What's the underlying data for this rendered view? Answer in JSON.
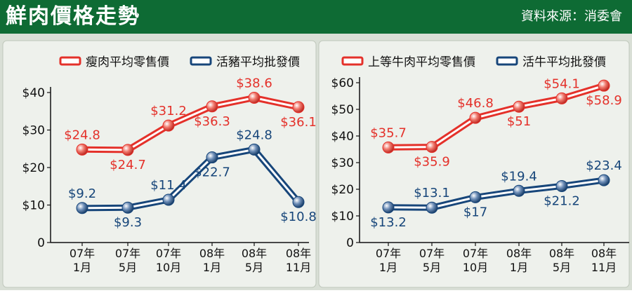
{
  "header": {
    "title": "鮮肉價格走勢",
    "source": "資料來源：消委會",
    "bg_color": "#0e6b34"
  },
  "colors": {
    "panel_bg": "#d9dfd6",
    "red": "#e4312a",
    "navy": "#17467a"
  },
  "chart_data": [
    {
      "type": "line",
      "categories": [
        [
          "07年",
          "1月"
        ],
        [
          "07年",
          "5月"
        ],
        [
          "07年",
          "10月"
        ],
        [
          "08年",
          "1月"
        ],
        [
          "08年",
          "5月"
        ],
        [
          "08年",
          "11月"
        ]
      ],
      "yticks": [
        "0",
        "$10",
        "$20",
        "$30",
        "$40"
      ],
      "ylim": [
        0,
        40
      ],
      "legend_position": "top",
      "series": [
        {
          "name": "瘦肉平均零售價",
          "color": "#e4312a",
          "values": [
            24.8,
            24.7,
            31.2,
            36.3,
            38.6,
            36.1
          ],
          "labels": [
            "$24.8",
            "$24.7",
            "$31.2",
            "$36.3",
            "$38.6",
            "$36.1"
          ],
          "label_pos": [
            "above",
            "below",
            "above",
            "below",
            "above",
            "below"
          ]
        },
        {
          "name": "活豬平均批發價",
          "color": "#17467a",
          "values": [
            9.2,
            9.3,
            11.4,
            22.7,
            24.8,
            10.8
          ],
          "labels": [
            "$9.2",
            "$9.3",
            "$11.4",
            "$22.7",
            "$24.8",
            "$10.8"
          ],
          "label_pos": [
            "above",
            "below",
            "above",
            "below",
            "above",
            "below"
          ]
        }
      ]
    },
    {
      "type": "line",
      "categories": [
        [
          "07年",
          "1月"
        ],
        [
          "07年",
          "5月"
        ],
        [
          "07年",
          "10月"
        ],
        [
          "08年",
          "1月"
        ],
        [
          "08年",
          "5月"
        ],
        [
          "08年",
          "11月"
        ]
      ],
      "yticks": [
        "0",
        "$10",
        "$20",
        "$30",
        "$40",
        "$50",
        "$60"
      ],
      "ylim": [
        0,
        60
      ],
      "legend_position": "top",
      "series": [
        {
          "name": "上等牛肉平均零售價",
          "color": "#e4312a",
          "values": [
            35.7,
            35.9,
            46.8,
            51,
            54.1,
            58.9
          ],
          "labels": [
            "$35.7",
            "$35.9",
            "$46.8",
            "$51",
            "$54.1",
            "$58.9"
          ],
          "label_pos": [
            "above",
            "below",
            "above",
            "below",
            "above",
            "below"
          ]
        },
        {
          "name": "活牛平均批發價",
          "color": "#17467a",
          "values": [
            13.2,
            13.1,
            17,
            19.4,
            21.2,
            23.4
          ],
          "labels": [
            "$13.2",
            "$13.1",
            "$17",
            "$19.4",
            "$21.2",
            "$23.4"
          ],
          "label_pos": [
            "below",
            "above",
            "below",
            "above",
            "below",
            "above"
          ]
        }
      ]
    }
  ]
}
